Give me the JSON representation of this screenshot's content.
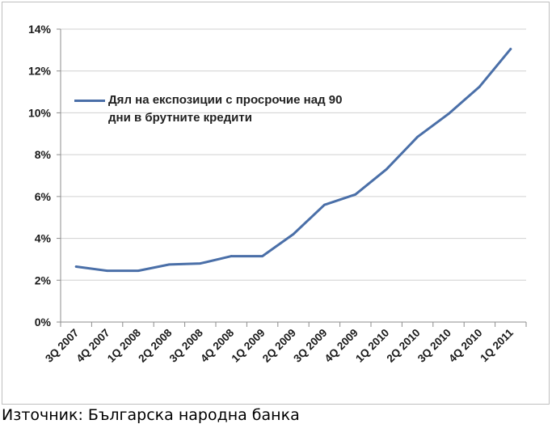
{
  "chart_data": {
    "type": "line",
    "categories": [
      "3Q 2007",
      "4Q 2007",
      "1Q 2008",
      "2Q 2008",
      "3Q 2008",
      "4Q 2008",
      "1Q 2009",
      "2Q 2009",
      "3Q 2009",
      "4Q 2009",
      "1Q 2010",
      "2Q 2010",
      "3Q 2010",
      "4Q 2010",
      "1Q 2011"
    ],
    "series": [
      {
        "name": "Дял на експозиции с просрочие над 90 дни в брутните кредити",
        "color": "#4a6fa8",
        "values": [
          2.65,
          2.45,
          2.45,
          2.75,
          2.8,
          3.15,
          3.15,
          4.2,
          5.6,
          6.1,
          7.3,
          8.85,
          9.95,
          11.25,
          13.05
        ]
      }
    ],
    "y_ticks": [
      "0%",
      "2%",
      "4%",
      "6%",
      "8%",
      "10%",
      "12%",
      "14%"
    ],
    "ylim": [
      0,
      14
    ],
    "y_unit": "%",
    "grid": true,
    "legend_position": "top-left"
  },
  "source_note": "Източник: Българска народна банка"
}
